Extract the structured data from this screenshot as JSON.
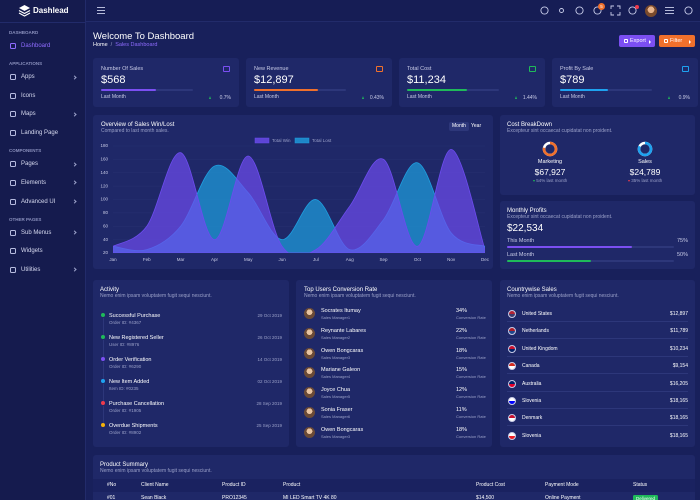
{
  "brand": "Dashlead",
  "sidebar": [
    {
      "title": "DASHBOARD",
      "items": [
        {
          "label": "Dashboard",
          "active": true,
          "submenu": false
        }
      ]
    },
    {
      "title": "APPLICATIONS",
      "items": [
        {
          "label": "Apps",
          "active": false,
          "submenu": true
        },
        {
          "label": "Icons",
          "active": false,
          "submenu": false
        },
        {
          "label": "Maps",
          "active": false,
          "submenu": true
        },
        {
          "label": "Landing Page",
          "active": false,
          "submenu": false
        }
      ]
    },
    {
      "title": "COMPONENTS",
      "items": [
        {
          "label": "Pages",
          "active": false,
          "submenu": true
        },
        {
          "label": "Elements",
          "active": false,
          "submenu": true
        },
        {
          "label": "Advanced UI",
          "active": false,
          "submenu": true
        }
      ]
    },
    {
      "title": "OTHER PAGES",
      "items": [
        {
          "label": "Sub Menus",
          "active": false,
          "submenu": true
        },
        {
          "label": "Widgets",
          "active": false,
          "submenu": false
        },
        {
          "label": "Utilities",
          "active": false,
          "submenu": true
        }
      ]
    }
  ],
  "topbar": {
    "cart_count": "5"
  },
  "header": {
    "title": "Welcome To Dashboard",
    "breadcrumb": [
      "Home",
      "Sales Dashboard"
    ],
    "breadcrumb_separator": "/",
    "buttons": [
      {
        "label": "Export",
        "color": "#7b4ff2"
      },
      {
        "label": "Filter",
        "color": "#f0702c"
      }
    ]
  },
  "stats": [
    {
      "title": "Number Of Sales",
      "value": "$568",
      "period": "Last Month",
      "change": "0.7%",
      "progress": 60,
      "color": "#7b4ff2"
    },
    {
      "title": "New Revenue",
      "value": "$12,897",
      "period": "Last Month",
      "change": "0.43%",
      "progress": 70,
      "color": "#f0702c"
    },
    {
      "title": "Total Cost",
      "value": "$11,234",
      "period": "Last Month",
      "change": "1.44%",
      "progress": 65,
      "color": "#1fba5a"
    },
    {
      "title": "Profit By Sale",
      "value": "$789",
      "period": "Last Month",
      "change": "0.9%",
      "progress": 52,
      "color": "#1ea2f0"
    }
  ],
  "chart_data": {
    "type": "area",
    "title": "Overview of Sales Win/Lost",
    "subtitle": "Compared to last month sales.",
    "tabs": [
      "Month",
      "Year"
    ],
    "categories": [
      "Jan",
      "Feb",
      "Mar",
      "Apr",
      "May",
      "Jun",
      "Jul",
      "Aug",
      "Sep",
      "Oct",
      "Nov",
      "Dec"
    ],
    "series": [
      {
        "name": "Total Win",
        "color": "#6d4cf0",
        "values": [
          30,
          60,
          170,
          40,
          165,
          30,
          25,
          90,
          160,
          30,
          175,
          25
        ]
      },
      {
        "name": "Total Lost",
        "color": "#1e9fe0",
        "values": [
          30,
          25,
          60,
          150,
          110,
          40,
          100,
          25,
          70,
          155,
          50,
          30
        ]
      }
    ],
    "ylim": [
      20,
      180
    ],
    "yticks": [
      20,
      40,
      60,
      80,
      100,
      120,
      140,
      160,
      180
    ],
    "grid": true
  },
  "cost_breakdown": {
    "title": "Cost BreakDown",
    "subtitle": "Excepteur sint occaecat cupidatat non proident.",
    "items": [
      {
        "label": "Marketing",
        "value": "$67,927",
        "change": "54% last month",
        "ring": 78,
        "color": "#f0702c"
      },
      {
        "label": "Sales",
        "value": "$24,789",
        "change": "35% last month",
        "ring": 82,
        "color": "#1ea2f0"
      }
    ]
  },
  "monthly_profits": {
    "title": "Monthly Profits",
    "subtitle": "Excepteur sint occaecat cupidatat non proident.",
    "value": "$22,534",
    "rows": [
      {
        "label": "This Month",
        "percent": 75,
        "percent_label": "75%",
        "color": "#7b4ff2"
      },
      {
        "label": "Last Month",
        "percent": 50,
        "percent_label": "50%",
        "color": "#1fba5a"
      }
    ]
  },
  "activity": {
    "title": "Activity",
    "subtitle": "Nemo enim ipsam voluptatem fugit sequi nesciunt.",
    "items": [
      {
        "title": "Successful Purchase",
        "id": "Order ID: #4367",
        "date": "29 Oct 2019",
        "color": "#1fba5a"
      },
      {
        "title": "New Registered Seller",
        "id": "User ID: #8976",
        "date": "26 Oct 2019",
        "color": "#1fba5a"
      },
      {
        "title": "Order Verification",
        "id": "Order ID: #6290",
        "date": "14 Oct 2019",
        "color": "#7b4ff2"
      },
      {
        "title": "New Item Added",
        "id": "Item ID: #0235",
        "date": "02 Oct 2019",
        "color": "#1ea2f0"
      },
      {
        "title": "Purchase Cancellation",
        "id": "Order ID: #1905",
        "date": "28 Sep 2019",
        "color": "#ef3b4c"
      },
      {
        "title": "Overdue Shipments",
        "id": "Order ID: #8902",
        "date": "25 Sep 2019",
        "color": "#f5b20a"
      }
    ]
  },
  "top_users": {
    "title": "Top Users Conversion Rate",
    "subtitle": "Nemo enim ipsam voluptatem fugit sequi nesciunt.",
    "metric_label": "Conversion Rate",
    "users": [
      {
        "name": "Socrates Itumay",
        "role": "Sales Manager1",
        "rate": "34%"
      },
      {
        "name": "Reynante Labares",
        "role": "Sales Manager2",
        "rate": "22%"
      },
      {
        "name": "Owen Bongcaras",
        "role": "Sales Manager3",
        "rate": "18%"
      },
      {
        "name": "Mariane Galeon",
        "role": "Sales Manager4",
        "rate": "15%"
      },
      {
        "name": "Joyce Chua",
        "role": "Sales Manager5",
        "rate": "12%"
      },
      {
        "name": "Sonia Fraser",
        "role": "Sales Manager6",
        "rate": "11%"
      },
      {
        "name": "Owen Bongcaras",
        "role": "Sales Manager3",
        "rate": "18%"
      }
    ]
  },
  "countries": {
    "title": "Countrywise Sales",
    "subtitle": "Nemo enim ipsam voluptatem fugit sequi nesciunt.",
    "items": [
      {
        "name": "United States",
        "sales": "$12,897",
        "flag": [
          "#b22234",
          "#3c3b6e"
        ]
      },
      {
        "name": "Netherlands",
        "sales": "$11,789",
        "flag": [
          "#ae1c28",
          "#21468b"
        ]
      },
      {
        "name": "United Kingdom",
        "sales": "$10,234",
        "flag": [
          "#c8102e",
          "#012169"
        ]
      },
      {
        "name": "Canada",
        "sales": "$9,154",
        "flag": [
          "#d52b1e",
          "#ffffff"
        ]
      },
      {
        "name": "Australia",
        "sales": "$16,205",
        "flag": [
          "#012169",
          "#e4002b"
        ]
      },
      {
        "name": "Slovenia",
        "sales": "$18,165",
        "flag": [
          "#ffffff",
          "#0000ff"
        ]
      },
      {
        "name": "Denmark",
        "sales": "$18,165",
        "flag": [
          "#c8102e",
          "#ffffff"
        ]
      },
      {
        "name": "Slovenia",
        "sales": "$18,165",
        "flag": [
          "#ffffff",
          "#ed1c24"
        ]
      }
    ]
  },
  "product_summary": {
    "title": "Product Summary",
    "subtitle": "Nemo enim ipsam voluptatem fugit sequi nesciunt.",
    "columns": [
      "#No",
      "Client Name",
      "Product ID",
      "Product",
      "Product Cost",
      "Payment Mode",
      "Status"
    ],
    "rows": [
      [
        "#01",
        "Sean Black",
        "PRO12345",
        "MI LED Smart TV 4K 80",
        "$14,500",
        "Online Payment",
        "Delivered"
      ]
    ],
    "status_color": "#1fba5a"
  }
}
